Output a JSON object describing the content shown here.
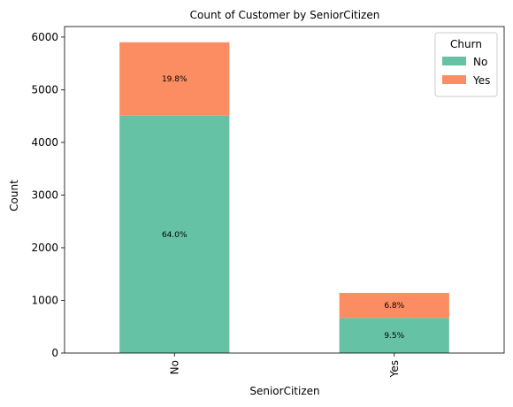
{
  "chart_data": {
    "type": "bar",
    "stacked": true,
    "title": "Count of Customer by SeniorCitizen",
    "xlabel": "SeniorCitizen",
    "ylabel": "Count",
    "categories": [
      "No",
      "Yes"
    ],
    "ylim": [
      0,
      6200
    ],
    "yticks": [
      0,
      1000,
      2000,
      3000,
      4000,
      5000,
      6000
    ],
    "legend": {
      "title": "Churn",
      "position": "top-right"
    },
    "series": [
      {
        "name": "No",
        "color": "#66c2a5",
        "values": [
          4508,
          666
        ],
        "labels": [
          "64.0%",
          "9.5%"
        ]
      },
      {
        "name": "Yes",
        "color": "#fc8d62",
        "values": [
          1393,
          476
        ],
        "labels": [
          "19.8%",
          "6.8%"
        ]
      }
    ]
  }
}
